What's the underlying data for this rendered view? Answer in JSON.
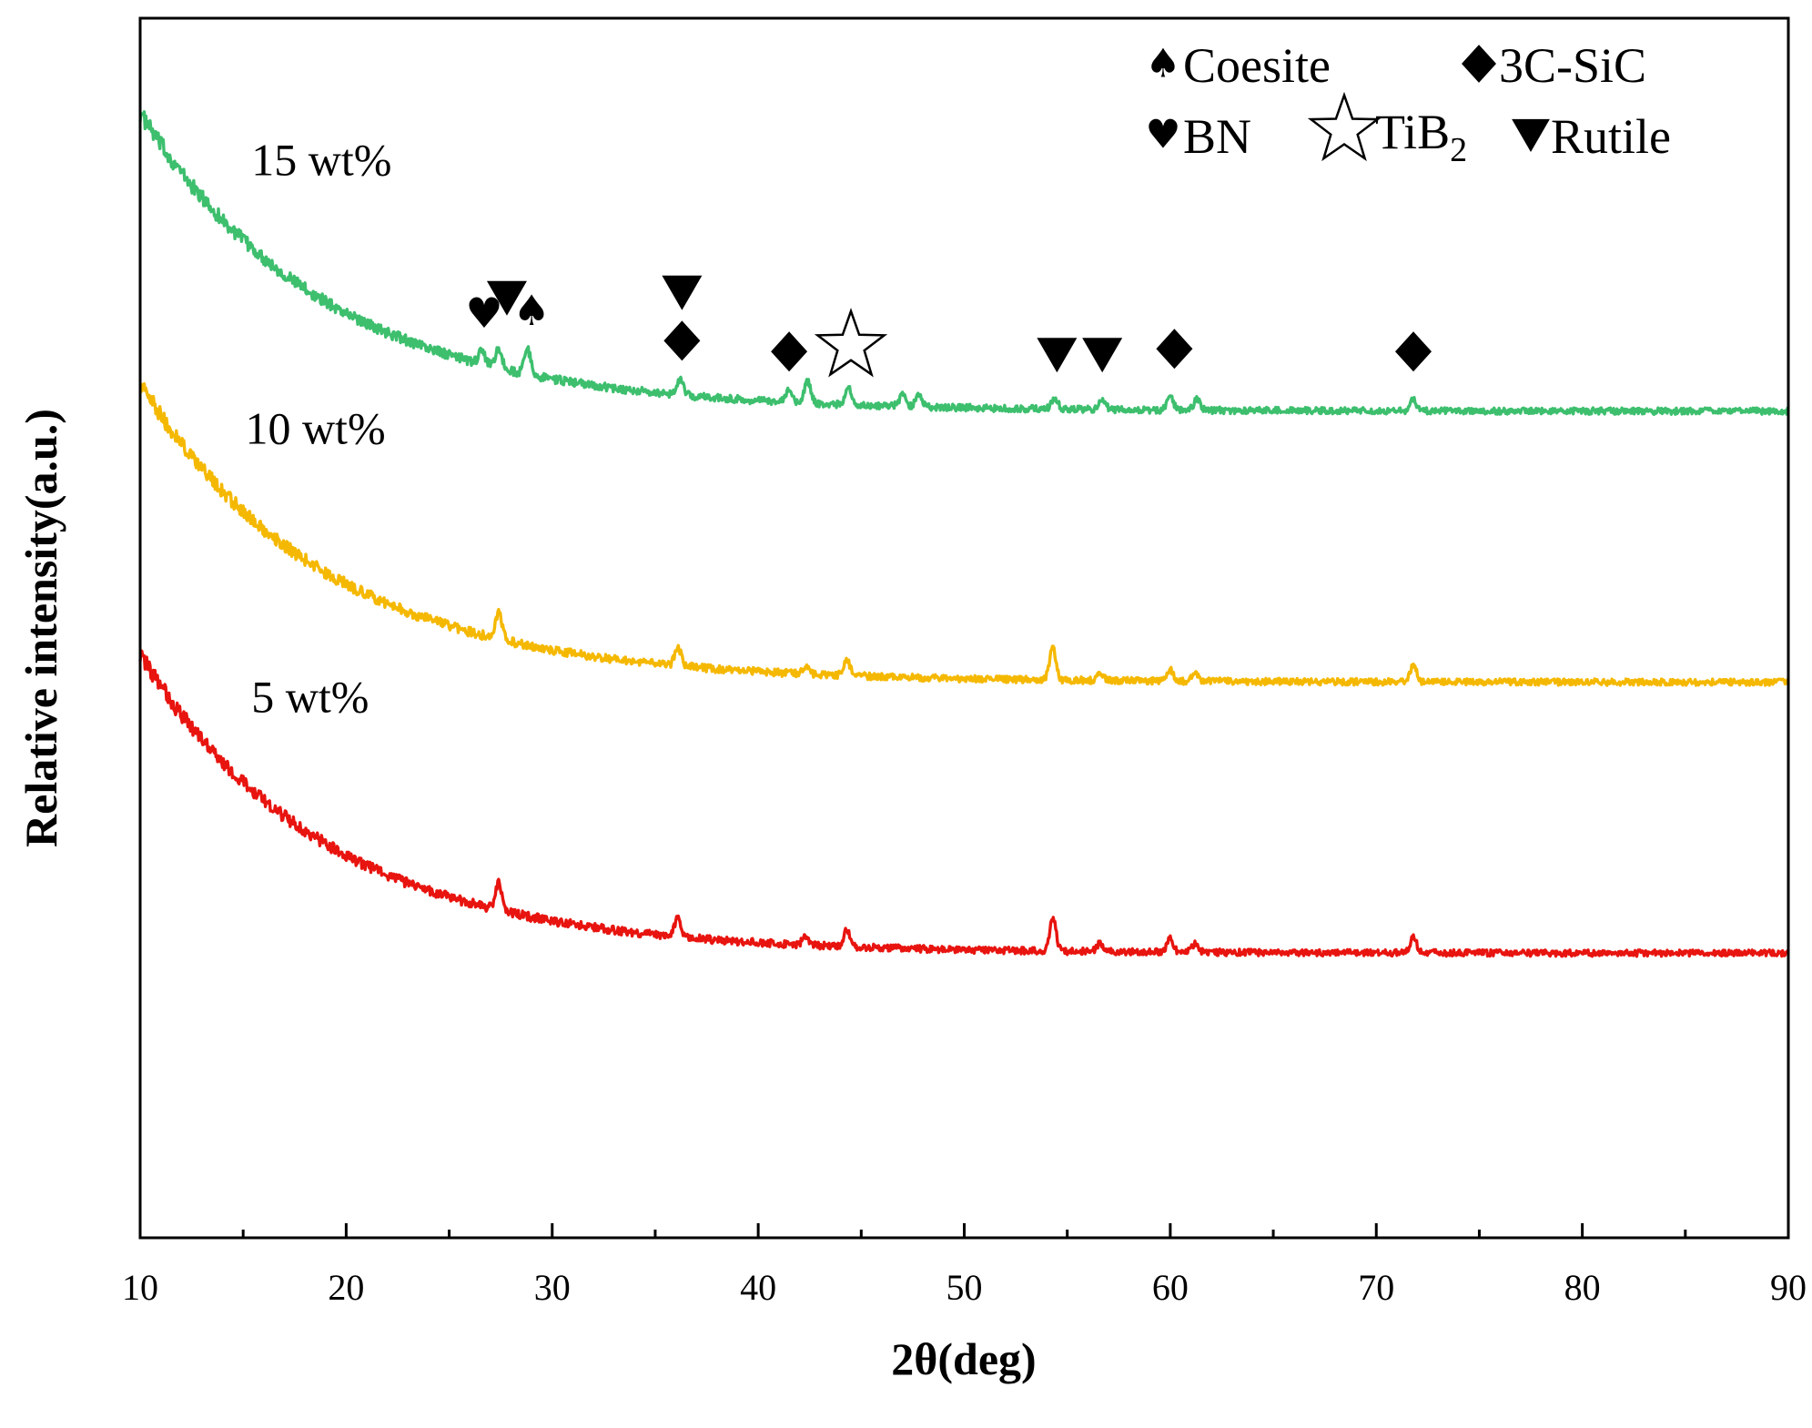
{
  "chart_data": {
    "type": "line",
    "title": "",
    "xlabel": "2θ(deg)",
    "ylabel": "Relative intensity(a.u.)",
    "xlim": [
      10,
      90
    ],
    "x_ticks": [
      "10",
      "20",
      "30",
      "40",
      "50",
      "60",
      "70",
      "80",
      "90"
    ],
    "y_ticks_shown": false,
    "grid": false,
    "colors": {
      "15wt": "#3dbf6e",
      "10wt": "#f5b800",
      "5wt": "#e8140f",
      "axis": "#000000"
    },
    "series": [
      {
        "name": "15 wt%",
        "color": "#3dbf6e",
        "baseline_offset": 2.0,
        "background": {
          "amplitude": 1.1,
          "decay": 9.0
        },
        "peaks": [
          {
            "x": 26.6,
            "h": 0.05
          },
          {
            "x": 27.4,
            "h": 0.07
          },
          {
            "x": 28.8,
            "h": 0.09
          },
          {
            "x": 36.2,
            "h": 0.06
          },
          {
            "x": 41.5,
            "h": 0.05
          },
          {
            "x": 42.4,
            "h": 0.08
          },
          {
            "x": 44.4,
            "h": 0.06
          },
          {
            "x": 47.0,
            "h": 0.04
          },
          {
            "x": 47.8,
            "h": 0.05
          },
          {
            "x": 54.4,
            "h": 0.04
          },
          {
            "x": 56.7,
            "h": 0.04
          },
          {
            "x": 60.0,
            "h": 0.05
          },
          {
            "x": 61.3,
            "h": 0.04
          },
          {
            "x": 71.8,
            "h": 0.04
          }
        ]
      },
      {
        "name": "10 wt%",
        "color": "#f5b800",
        "baseline_offset": 1.0,
        "background": {
          "amplitude": 1.1,
          "decay": 9.0
        },
        "peaks": [
          {
            "x": 27.4,
            "h": 0.1
          },
          {
            "x": 36.1,
            "h": 0.07
          },
          {
            "x": 42.3,
            "h": 0.03
          },
          {
            "x": 44.3,
            "h": 0.06
          },
          {
            "x": 54.3,
            "h": 0.12
          },
          {
            "x": 56.6,
            "h": 0.03
          },
          {
            "x": 60.0,
            "h": 0.04
          },
          {
            "x": 61.2,
            "h": 0.03
          },
          {
            "x": 71.8,
            "h": 0.06
          }
        ]
      },
      {
        "name": "5 wt%",
        "color": "#e8140f",
        "baseline_offset": 0.0,
        "background": {
          "amplitude": 1.1,
          "decay": 9.0
        },
        "peaks": [
          {
            "x": 27.4,
            "h": 0.1
          },
          {
            "x": 36.1,
            "h": 0.07
          },
          {
            "x": 42.3,
            "h": 0.03
          },
          {
            "x": 44.3,
            "h": 0.06
          },
          {
            "x": 54.3,
            "h": 0.12
          },
          {
            "x": 56.6,
            "h": 0.03
          },
          {
            "x": 60.0,
            "h": 0.05
          },
          {
            "x": 61.2,
            "h": 0.03
          },
          {
            "x": 71.8,
            "h": 0.06
          }
        ]
      }
    ],
    "series_labels": [
      {
        "text": "15 wt%",
        "x": 15.4,
        "y": 2.87
      },
      {
        "text": "10 wt%",
        "x": 15.1,
        "y": 1.88
      },
      {
        "text": "5 wt%",
        "x": 15.4,
        "y": 0.89
      }
    ],
    "phase_markers": [
      {
        "phase": "BN",
        "x": 26.7,
        "y": 2.36
      },
      {
        "phase": "Rutile",
        "x": 27.8,
        "y": 2.42
      },
      {
        "phase": "Coesite",
        "x": 29.0,
        "y": 2.37
      },
      {
        "phase": "Rutile",
        "x": 36.3,
        "y": 2.44
      },
      {
        "phase": "3C-SiC",
        "x": 36.3,
        "y": 2.26
      },
      {
        "phase": "3C-SiC",
        "x": 41.5,
        "y": 2.22
      },
      {
        "phase": "TiB2",
        "x": 44.5,
        "y": 2.24
      },
      {
        "phase": "Rutile",
        "x": 54.5,
        "y": 2.21
      },
      {
        "phase": "Rutile",
        "x": 56.7,
        "y": 2.21
      },
      {
        "phase": "3C-SiC",
        "x": 60.2,
        "y": 2.23
      },
      {
        "phase": "3C-SiC",
        "x": 71.8,
        "y": 2.22
      }
    ],
    "legend": {
      "placement": "top-right",
      "entries": [
        {
          "phase": "Coesite",
          "label": "Coesite"
        },
        {
          "phase": "3C-SiC",
          "label": "3C-SiC"
        },
        {
          "phase": "BN",
          "label": "BN"
        },
        {
          "phase": "TiB2",
          "label": "TiB",
          "subscript": "2"
        },
        {
          "phase": "Rutile",
          "label": "Rutile"
        }
      ]
    }
  }
}
